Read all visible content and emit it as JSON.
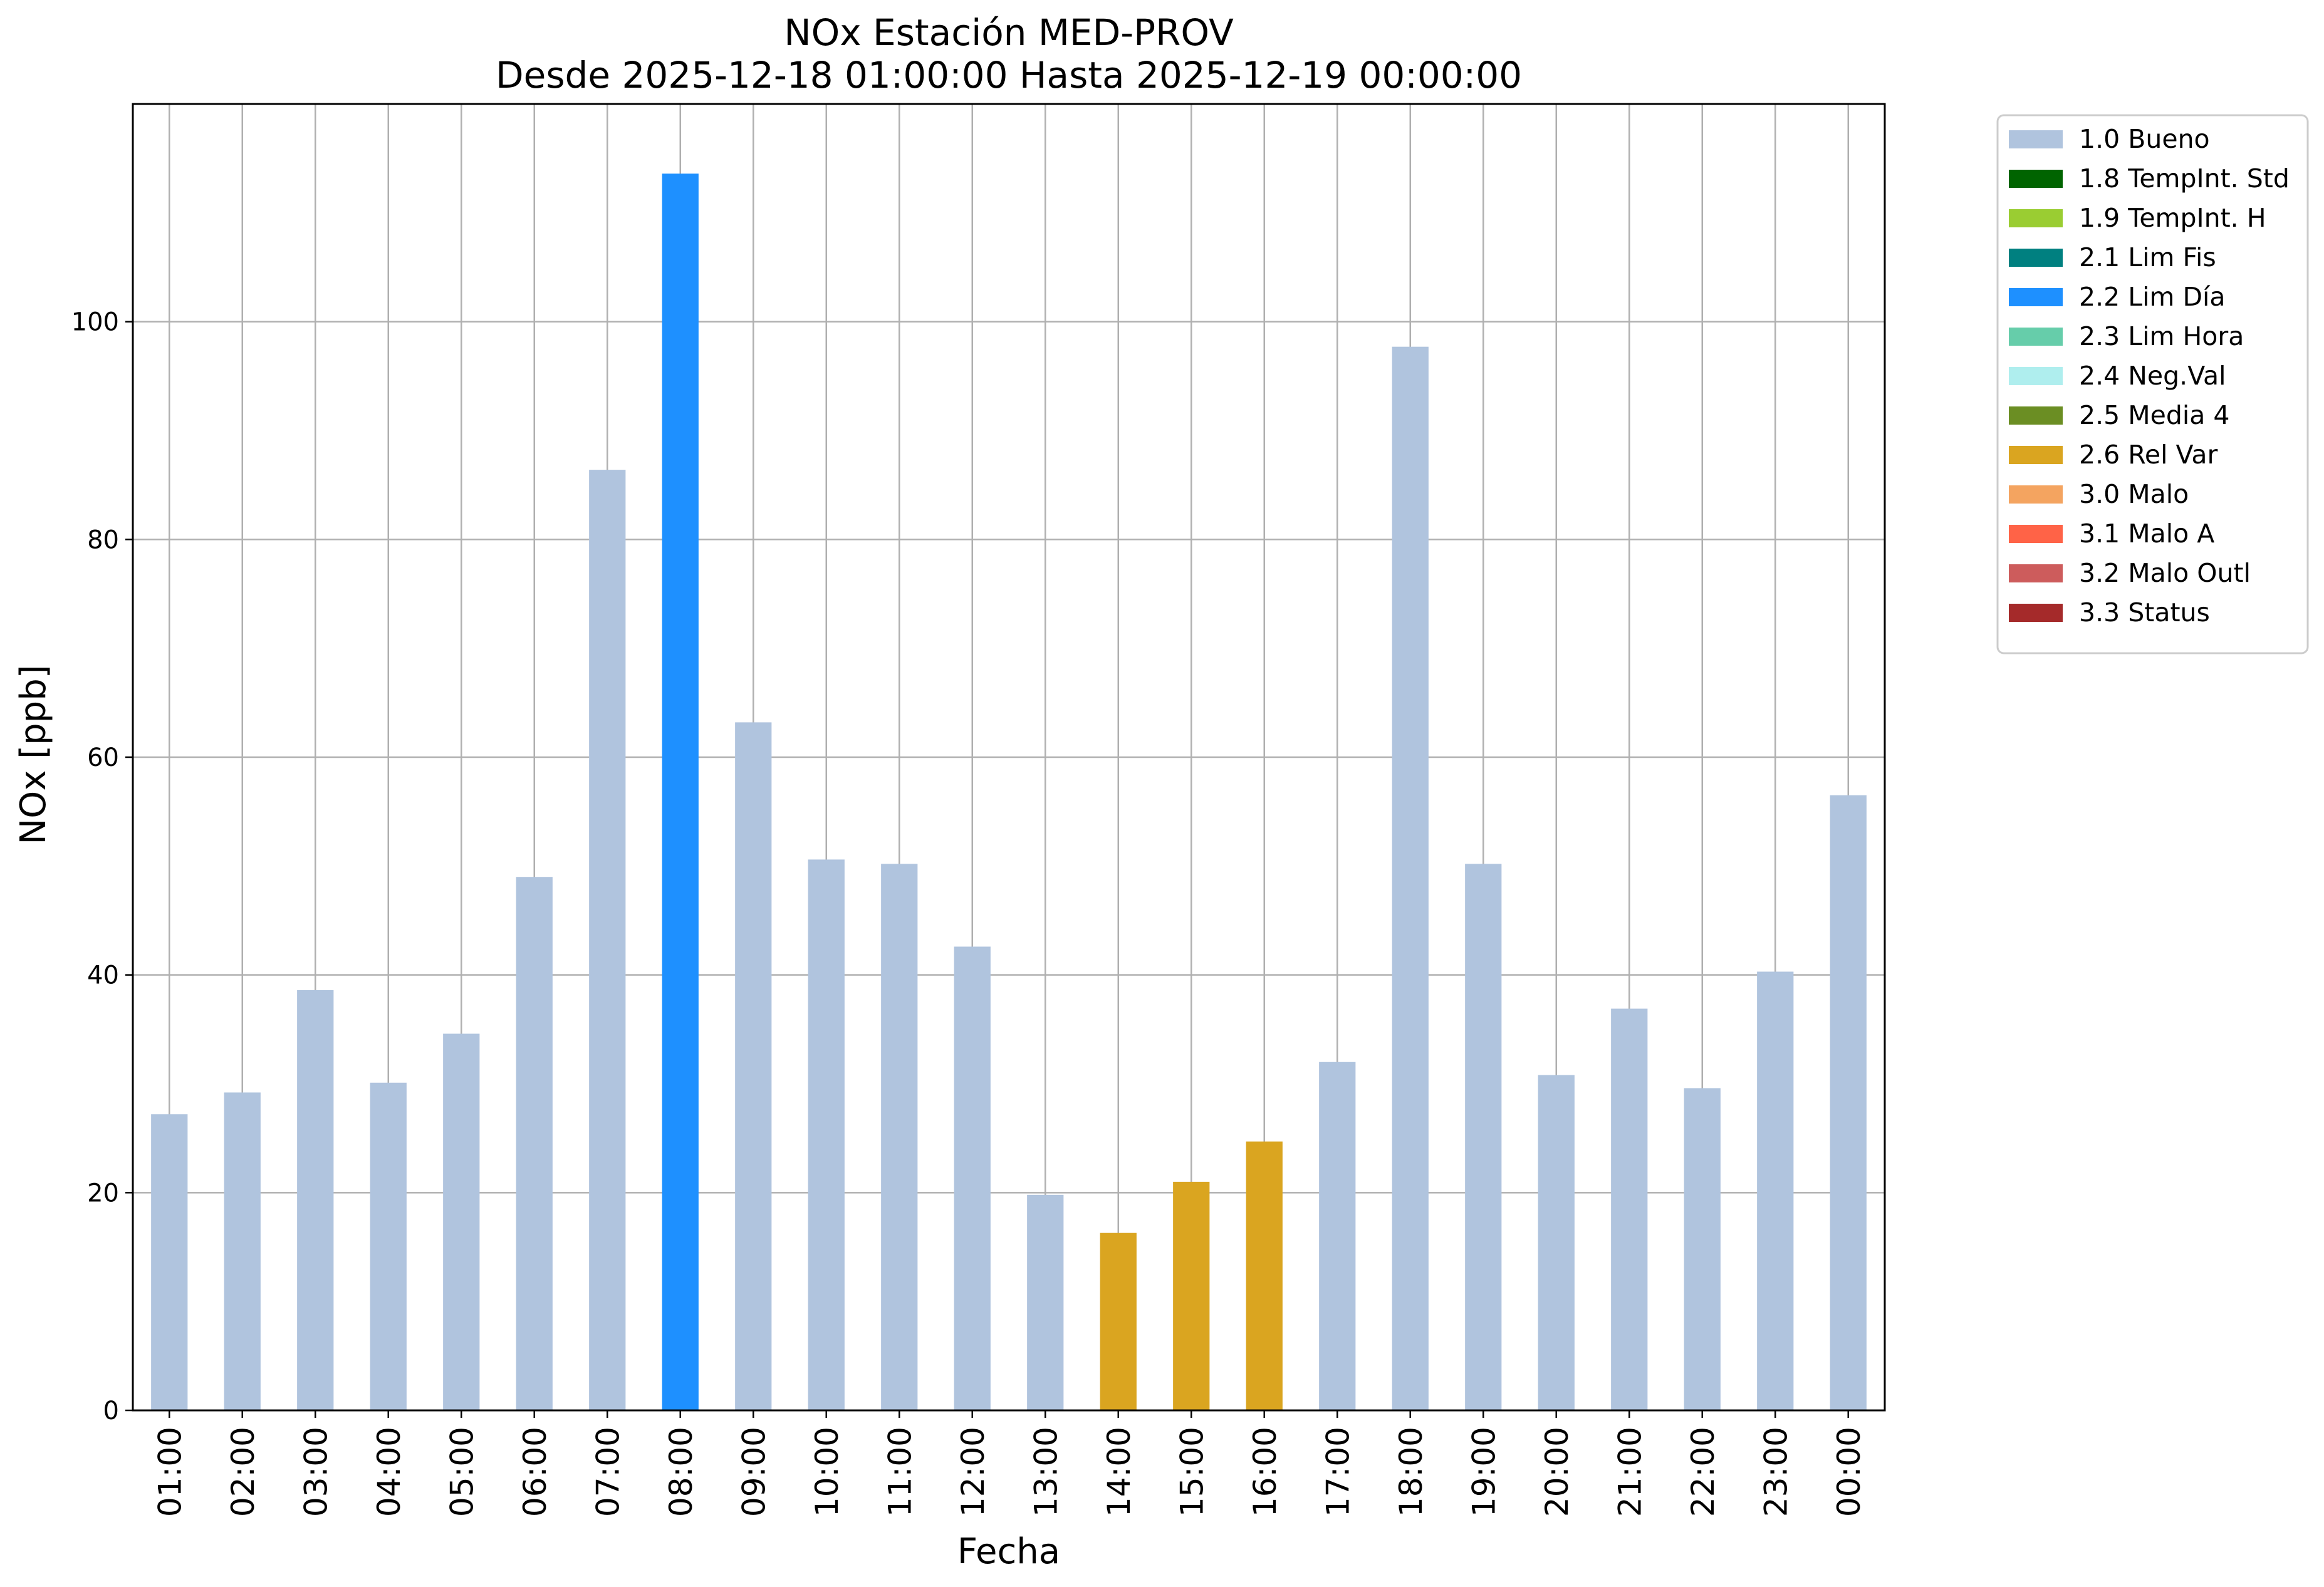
{
  "chart_data": {
    "type": "bar",
    "title": "NOx Estación MED-PROV",
    "subtitle": "Desde 2025-12-18 01:00:00 Hasta 2025-12-19 00:00:00",
    "xlabel": "Fecha",
    "ylabel": "NOx [ppb]",
    "ylim": [
      0,
      120
    ],
    "yticks": [
      0,
      20,
      40,
      60,
      80,
      100
    ],
    "grid": true,
    "legend_placement": "outside-right-top",
    "categories": [
      "01:00",
      "02:00",
      "03:00",
      "04:00",
      "05:00",
      "06:00",
      "07:00",
      "08:00",
      "09:00",
      "10:00",
      "11:00",
      "12:00",
      "13:00",
      "14:00",
      "15:00",
      "16:00",
      "17:00",
      "18:00",
      "19:00",
      "20:00",
      "21:00",
      "22:00",
      "23:00",
      "00:00"
    ],
    "values": [
      27.2,
      29.2,
      38.6,
      30.1,
      34.6,
      49.0,
      86.4,
      113.6,
      63.2,
      50.6,
      50.2,
      42.6,
      19.8,
      16.3,
      21.0,
      24.7,
      32.0,
      97.7,
      50.2,
      30.8,
      36.9,
      29.6,
      40.3,
      56.5
    ],
    "flags": [
      "1.0 Bueno",
      "1.0 Bueno",
      "1.0 Bueno",
      "1.0 Bueno",
      "1.0 Bueno",
      "1.0 Bueno",
      "1.0 Bueno",
      "2.2 Lim Día",
      "1.0 Bueno",
      "1.0 Bueno",
      "1.0 Bueno",
      "1.0 Bueno",
      "1.0 Bueno",
      "2.6 Rel Var",
      "2.6 Rel Var",
      "2.6 Rel Var",
      "1.0 Bueno",
      "1.0 Bueno",
      "1.0 Bueno",
      "1.0 Bueno",
      "1.0 Bueno",
      "1.0 Bueno",
      "1.0 Bueno",
      "1.0 Bueno"
    ],
    "legend": [
      {
        "label": "1.0 Bueno",
        "color": "#b0c4de"
      },
      {
        "label": "1.8 TempInt. Std",
        "color": "#006400"
      },
      {
        "label": "1.9 TempInt. H",
        "color": "#9acd32"
      },
      {
        "label": "2.1 Lim Fis",
        "color": "#008080"
      },
      {
        "label": "2.2 Lim Día",
        "color": "#1e90ff"
      },
      {
        "label": "2.3 Lim Hora",
        "color": "#66cdaa"
      },
      {
        "label": "2.4 Neg.Val",
        "color": "#afeeee"
      },
      {
        "label": "2.5 Media 4",
        "color": "#6b8e23"
      },
      {
        "label": "2.6 Rel Var",
        "color": "#daa520"
      },
      {
        "label": "3.0 Malo",
        "color": "#f4a460"
      },
      {
        "label": "3.1 Malo A",
        "color": "#ff6347"
      },
      {
        "label": "3.2 Malo Outl",
        "color": "#cd5c5c"
      },
      {
        "label": "3.3 Status",
        "color": "#a52a2a"
      }
    ]
  }
}
